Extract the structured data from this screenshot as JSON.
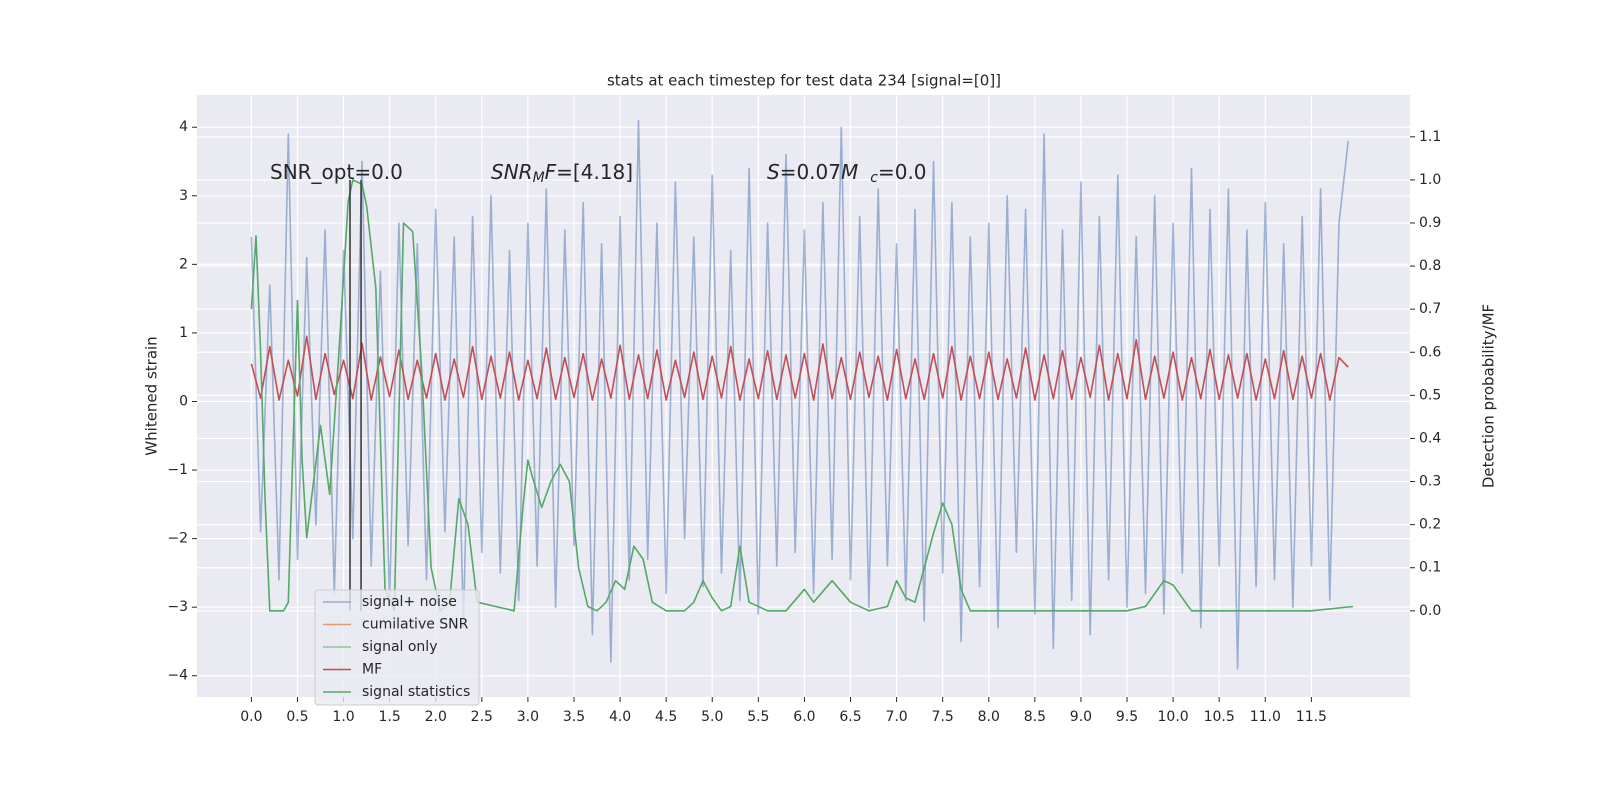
{
  "chart_data": {
    "type": "line",
    "title": "stats at each timestep for test data 234 [signal=[0]]",
    "y_label": "Whitened strain",
    "y2_label": "Detection probability/MF",
    "xlim": [
      -0.59,
      12.57
    ],
    "ylim": [
      -4.31,
      4.47
    ],
    "y2lim": [
      -0.2,
      1.197
    ],
    "grid": true,
    "background": "#eaeaf2",
    "legend": "lower left",
    "xticks": [
      {
        "value": 0,
        "label": "0.0"
      },
      0.5,
      {
        "value": 1,
        "label": "1.0"
      },
      1.5,
      {
        "value": 2,
        "label": "2.0"
      },
      2.5,
      {
        "value": 3,
        "label": "3.0"
      },
      3.5,
      {
        "value": 4,
        "label": "4.0"
      },
      4.5,
      {
        "value": 5,
        "label": "5.0"
      },
      5.5,
      {
        "value": 6,
        "label": "6.0"
      },
      6.5,
      {
        "value": 7,
        "label": "7.0"
      },
      7.5,
      {
        "value": 8,
        "label": "8.0"
      },
      8.5,
      {
        "value": 9,
        "label": "9.0"
      },
      9.5,
      {
        "value": 10,
        "label": "10.0"
      },
      10.5,
      {
        "value": 11,
        "label": "11.0"
      },
      11.5
    ],
    "yticks": [
      {
        "value": -4,
        "label": "−4"
      },
      {
        "value": -3,
        "label": "−3"
      },
      {
        "value": -2,
        "label": "−2"
      },
      {
        "value": -1,
        "label": "−1"
      },
      0,
      1,
      2,
      3,
      4
    ],
    "y2ticks": [
      {
        "value": 0,
        "label": "0.0"
      },
      0.1,
      0.2,
      0.3,
      0.4,
      0.5,
      0.6,
      0.7,
      0.8,
      0.9,
      {
        "value": 1,
        "label": "1.0"
      },
      1.1
    ],
    "x": [
      0,
      0.1,
      0.2,
      0.3,
      0.4,
      0.5,
      0.6,
      0.7,
      0.8,
      0.9,
      1,
      1.1,
      1.2,
      1.3,
      1.4,
      1.5,
      1.6,
      1.7,
      1.8,
      1.9,
      2,
      2.1,
      2.2,
      2.3,
      2.4,
      2.5,
      2.6,
      2.7,
      2.8,
      2.9,
      3,
      3.1,
      3.2,
      3.3,
      3.4,
      3.5,
      3.6,
      3.7,
      3.8,
      3.9,
      4,
      4.1,
      4.2,
      4.3,
      4.4,
      4.5,
      4.6,
      4.7,
      4.8,
      4.9,
      5,
      5.1,
      5.2,
      5.3,
      5.4,
      5.5,
      5.6,
      5.7,
      5.8,
      5.9,
      6,
      6.1,
      6.2,
      6.3,
      6.4,
      6.5,
      6.6,
      6.7,
      6.8,
      6.9,
      7,
      7.1,
      7.2,
      7.3,
      7.4,
      7.5,
      7.6,
      7.7,
      7.8,
      7.9,
      8,
      8.1,
      8.2,
      8.3,
      8.4,
      8.5,
      8.6,
      8.7,
      8.8,
      8.9,
      9,
      9.1,
      9.2,
      9.3,
      9.4,
      9.5,
      9.6,
      9.7,
      9.8,
      9.9,
      10,
      10.1,
      10.2,
      10.3,
      10.4,
      10.5,
      10.6,
      10.7,
      10.8,
      10.9,
      11,
      11.1,
      11.2,
      11.3,
      11.4,
      11.5,
      11.6,
      11.7,
      11.8,
      11.9
    ],
    "series": [
      {
        "name": "signal+ noise",
        "color": "#4c72b0",
        "opacity": 0.5,
        "axis": "y",
        "values": [
          2.4,
          -1.9,
          1.7,
          -2.6,
          3.9,
          -2.3,
          2.1,
          -1.8,
          2.5,
          -2.8,
          2.2,
          -2.0,
          3.5,
          -2.4,
          1.9,
          -2.9,
          2.6,
          -2.1,
          2.3,
          -2.6,
          2.8,
          -1.9,
          2.4,
          -3.3,
          2.7,
          -2.2,
          3.0,
          -2.5,
          2.2,
          -2.9,
          2.6,
          -2.4,
          3.1,
          -3.0,
          2.5,
          -2.1,
          2.9,
          -3.4,
          2.3,
          -3.8,
          2.7,
          -2.6,
          4.1,
          -2.3,
          2.6,
          -2.8,
          3.2,
          -2.0,
          2.4,
          -2.7,
          3.3,
          -2.5,
          2.2,
          -2.9,
          3.4,
          -3.1,
          2.6,
          -2.4,
          3.6,
          -2.2,
          2.5,
          -2.8,
          2.9,
          -2.3,
          4.0,
          -2.6,
          2.7,
          -3.0,
          3.1,
          -2.4,
          2.3,
          -2.9,
          2.8,
          -3.2,
          3.5,
          -2.5,
          2.9,
          -3.5,
          2.4,
          -2.7,
          2.6,
          -3.3,
          3.0,
          -2.2,
          2.8,
          -3.1,
          3.9,
          -3.6,
          2.5,
          -2.9,
          3.2,
          -3.4,
          2.7,
          -2.6,
          3.3,
          -3.0,
          2.4,
          -2.8,
          3.0,
          -3.1,
          2.6,
          -2.5,
          3.4,
          -3.3,
          2.8,
          -2.4,
          3.1,
          -3.9,
          2.5,
          -2.7,
          2.9,
          -2.6,
          2.3,
          -3.0,
          2.7,
          -2.4,
          3.1,
          -2.9,
          2.6,
          3.8
        ]
      },
      {
        "name": "cumilative SNR",
        "color": "#dd8452",
        "opacity": 0.8,
        "axis": "y"
      },
      {
        "name": "signal only",
        "color": "#55a868",
        "opacity": 0.6,
        "axis": "y"
      },
      {
        "name": "MF",
        "color": "#c44e52",
        "opacity": 1,
        "axis": "y",
        "values": [
          0.55,
          0.05,
          0.8,
          0.02,
          0.6,
          0.08,
          0.95,
          0.03,
          0.7,
          0.1,
          0.6,
          0.04,
          0.85,
          0.02,
          0.65,
          0.07,
          0.75,
          0.03,
          0.6,
          0.05,
          0.7,
          0.02,
          0.62,
          0.06,
          0.8,
          0.03,
          0.66,
          0.05,
          0.72,
          0.02,
          0.6,
          0.04,
          0.78,
          0.03,
          0.64,
          0.06,
          0.7,
          0.02,
          0.62,
          0.05,
          0.82,
          0.03,
          0.68,
          0.04,
          0.75,
          0.02,
          0.6,
          0.06,
          0.72,
          0.03,
          0.66,
          0.05,
          0.8,
          0.02,
          0.62,
          0.04,
          0.74,
          0.03,
          0.68,
          0.05,
          0.7,
          0.02,
          0.84,
          0.04,
          0.64,
          0.03,
          0.72,
          0.06,
          0.66,
          0.02,
          0.76,
          0.04,
          0.62,
          0.03,
          0.7,
          0.05,
          0.8,
          0.02,
          0.66,
          0.04,
          0.72,
          0.03,
          0.62,
          0.05,
          0.78,
          0.02,
          0.68,
          0.04,
          0.74,
          0.03,
          0.64,
          0.06,
          0.82,
          0.02,
          0.7,
          0.04,
          0.9,
          0.03,
          0.66,
          0.05,
          0.72,
          0.02,
          0.64,
          0.04,
          0.76,
          0.03,
          0.68,
          0.05,
          0.7,
          0.02,
          0.62,
          0.04,
          0.74,
          0.03,
          0.66,
          0.05,
          0.7,
          0.02,
          0.64,
          0.5
        ]
      },
      {
        "name": "signal statistics",
        "color": "#55a868",
        "opacity": 1,
        "axis": "y2",
        "x": [
          0,
          0.05,
          0.1,
          0.15,
          0.2,
          0.35,
          0.4,
          0.5,
          0.55,
          0.6,
          0.75,
          0.85,
          0.95,
          1.05,
          1.1,
          1.2,
          1.25,
          1.35,
          1.45,
          1.55,
          1.65,
          1.75,
          1.85,
          1.95,
          2.05,
          2.15,
          2.25,
          2.35,
          2.45,
          2.65,
          2.85,
          2.95,
          3.0,
          3.05,
          3.15,
          3.25,
          3.35,
          3.45,
          3.55,
          3.65,
          3.75,
          3.85,
          3.95,
          4.05,
          4.15,
          4.25,
          4.35,
          4.5,
          4.7,
          4.8,
          4.9,
          5.0,
          5.1,
          5.2,
          5.3,
          5.4,
          5.6,
          5.8,
          6.0,
          6.1,
          6.3,
          6.5,
          6.7,
          6.9,
          7.0,
          7.1,
          7.2,
          7.4,
          7.5,
          7.6,
          7.7,
          7.8,
          8.0,
          9.5,
          9.7,
          9.9,
          10.0,
          10.2,
          10.5,
          11.5,
          11.95
        ],
        "values": [
          0.7,
          0.87,
          0.6,
          0.25,
          0.0,
          0.0,
          0.02,
          0.72,
          0.35,
          0.17,
          0.43,
          0.27,
          0.6,
          0.95,
          1.0,
          0.99,
          0.94,
          0.75,
          0.05,
          0.0,
          0.9,
          0.88,
          0.55,
          0.1,
          0.0,
          0.02,
          0.26,
          0.2,
          0.02,
          0.01,
          0.0,
          0.25,
          0.35,
          0.31,
          0.24,
          0.3,
          0.34,
          0.3,
          0.1,
          0.01,
          0.0,
          0.02,
          0.07,
          0.05,
          0.15,
          0.12,
          0.02,
          0.0,
          0.0,
          0.02,
          0.07,
          0.03,
          0.0,
          0.01,
          0.15,
          0.02,
          0.0,
          0.0,
          0.05,
          0.02,
          0.07,
          0.02,
          0.0,
          0.01,
          0.07,
          0.03,
          0.02,
          0.18,
          0.25,
          0.2,
          0.05,
          0.0,
          0.0,
          0.0,
          0.01,
          0.07,
          0.06,
          0.0,
          0.0,
          0.0,
          0.01
        ]
      }
    ],
    "vlines": {
      "color": "#333333",
      "x": [
        1.07,
        1.19
      ],
      "y2_range": [
        0,
        1
      ]
    },
    "annotations": [
      [
        {
          "text": "SNR_opt=0.0",
          "style": "normal"
        }
      ],
      [
        {
          "text": "SNR",
          "style": "italic"
        },
        {
          "text": "M",
          "style": "italic-sub"
        },
        {
          "text": "F",
          "style": "italic"
        },
        {
          "text": "=[4.18]",
          "style": "normal"
        }
      ],
      [
        {
          "text": "S",
          "style": "italic"
        },
        {
          "text": "=0.07",
          "style": "normal"
        },
        {
          "text": "M",
          "style": "italic"
        },
        {
          "text": "c",
          "style": "italic-sub"
        },
        {
          "text": "=0.0",
          "style": "normal"
        }
      ]
    ]
  }
}
